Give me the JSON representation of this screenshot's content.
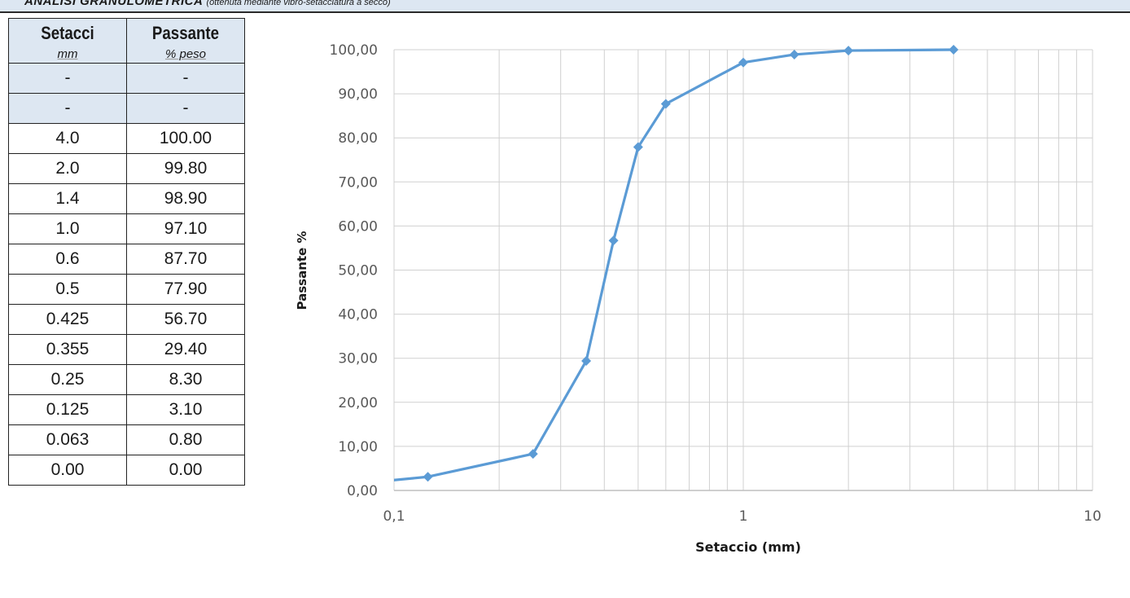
{
  "header": {
    "title": "ANALISI GRANULOMETRICA",
    "subtitle": "(ottenuta mediante vibro-setacciatura a secco)"
  },
  "table": {
    "col1_title": "Setacci",
    "col1_unit": "mm",
    "col2_title": "Passante",
    "col2_unit": "% peso",
    "rows": [
      [
        "-",
        "-"
      ],
      [
        "-",
        "-"
      ],
      [
        "4.0",
        "100.00"
      ],
      [
        "2.0",
        "99.80"
      ],
      [
        "1.4",
        "98.90"
      ],
      [
        "1.0",
        "97.10"
      ],
      [
        "0.6",
        "87.70"
      ],
      [
        "0.5",
        "77.90"
      ],
      [
        "0.425",
        "56.70"
      ],
      [
        "0.355",
        "29.40"
      ],
      [
        "0.25",
        "8.30"
      ],
      [
        "0.125",
        "3.10"
      ],
      [
        "0.063",
        "0.80"
      ],
      [
        "0.00",
        "0.00"
      ]
    ]
  },
  "chart_data": {
    "type": "line",
    "xlabel": "Setaccio (mm)",
    "ylabel": "Passante %",
    "x_scale": "log",
    "xlim": [
      0.1,
      10
    ],
    "ylim": [
      0,
      100
    ],
    "x_ticks": [
      "0,1",
      "1",
      "10"
    ],
    "y_ticks": [
      "0,00",
      "10,00",
      "20,00",
      "30,00",
      "40,00",
      "50,00",
      "60,00",
      "70,00",
      "80,00",
      "90,00",
      "100,00"
    ],
    "grid": true,
    "series": [
      {
        "color": "#5b9bd5",
        "marker": "diamond",
        "x": [
          0.063,
          0.125,
          0.25,
          0.355,
          0.425,
          0.5,
          0.6,
          1.0,
          1.4,
          2.0,
          4.0
        ],
        "y": [
          0.8,
          3.1,
          8.3,
          29.4,
          56.7,
          77.9,
          87.7,
          97.1,
          98.9,
          99.8,
          100.0
        ]
      }
    ]
  }
}
